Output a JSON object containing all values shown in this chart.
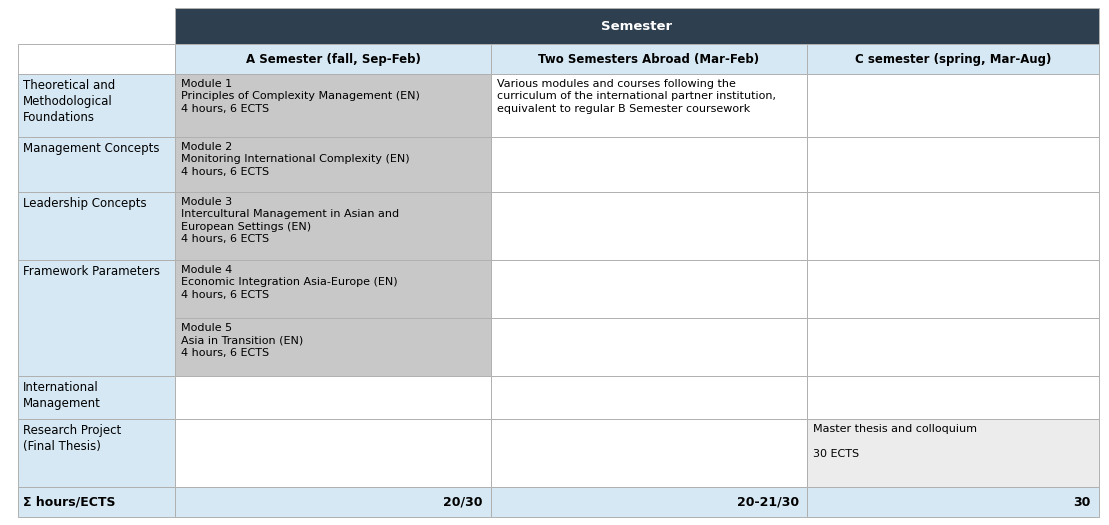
{
  "title": "Semester",
  "col_headers": [
    "A Semester (fall, Sep-Feb)",
    "Two Semesters Abroad (Mar-Feb)",
    "C semester (spring, Mar-Aug)"
  ],
  "row_labels": [
    "Theoretical and\nMethodological\nFoundations",
    "Management Concepts",
    "Leadership Concepts",
    "Framework Parameters",
    "",
    "International\nManagement",
    "Research Project\n(Final Thesis)"
  ],
  "cells": [
    [
      "Module 1\nPrinciples of Complexity Management (EN)\n4 hours, 6 ECTS",
      "Various modules and courses following the\ncurriculum of the international partner institution,\nequivalent to regular B Semester coursework",
      ""
    ],
    [
      "Module 2\nMonitoring International Complexity (EN)\n4 hours, 6 ECTS",
      "",
      ""
    ],
    [
      "Module 3\nIntercultural Management in Asian and\nEuropean Settings (EN)\n4 hours, 6 ECTS",
      "",
      ""
    ],
    [
      "Module 4\nEconomic Integration Asia-Europe (EN)\n4 hours, 6 ECTS",
      "",
      ""
    ],
    [
      "Module 5\nAsia in Transition (EN)\n4 hours, 6 ECTS",
      "",
      ""
    ],
    [
      "",
      "",
      ""
    ],
    [
      "",
      "",
      "Master thesis and colloquium\n\n30 ECTS"
    ]
  ],
  "footer_label": "Σ hours/ECTS",
  "footer_values": [
    "20/30",
    "20-21/30",
    "30"
  ],
  "header_bg": "#2e3f50",
  "header_text_color": "#ffffff",
  "subheader_bg": "#d6e8f4",
  "subheader_text_color": "#000000",
  "row_label_bg": "#d6e8f4",
  "cell_bg_dark": "#c8c8c8",
  "cell_bg_light": "#ececec",
  "footer_bg": "#d6e8f4",
  "footer_text_color": "#000000",
  "border_color": "#b0b0b0",
  "fig_bg": "#ffffff",
  "row_label_font": 8.5,
  "cell_font": 8.0,
  "header_font": 9.5,
  "subheader_font": 8.5,
  "footer_font": 9.0
}
